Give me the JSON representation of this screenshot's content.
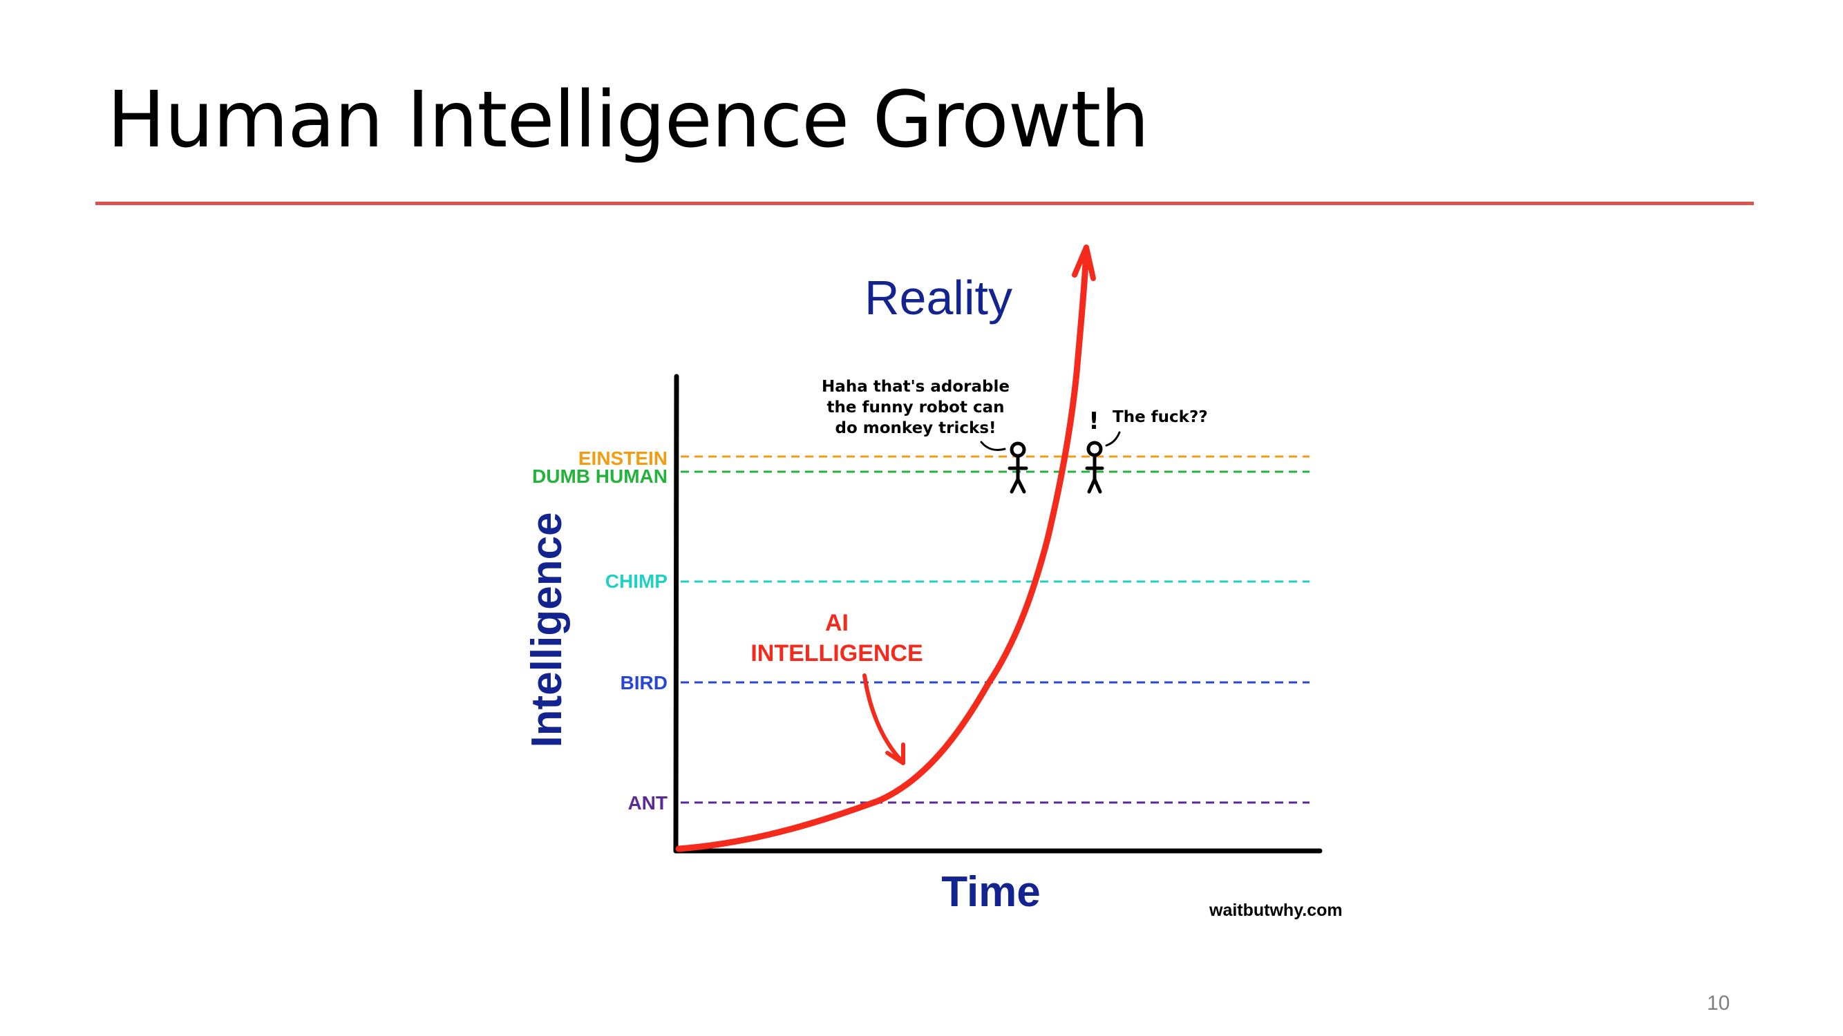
{
  "slide": {
    "title": "Human Intelligence Growth",
    "page_number": "10",
    "rule_color": "#d9534f"
  },
  "diagram": {
    "title": "Reality",
    "x_axis_label": "Time",
    "y_axis_label": "Intelligence",
    "source": "waitbutwhy.com",
    "levels": [
      {
        "label": "EINSTEIN",
        "color": "#f39c12"
      },
      {
        "label": "DUMB HUMAN",
        "color": "#22b33a"
      },
      {
        "label": "CHIMP",
        "color": "#1fd1c2"
      },
      {
        "label": "BIRD",
        "color": "#2846d6"
      },
      {
        "label": "ANT",
        "color": "#5a2a96"
      }
    ],
    "curve": {
      "label_line1": "AI",
      "label_line2": "INTELLIGENCE",
      "color": "#f42b1c"
    },
    "speech": {
      "left_lines": [
        "Haha that's adorable",
        "the funny robot can",
        "do monkey tricks!"
      ],
      "right_line": "The fuck??",
      "exclamation": "!"
    },
    "colors": {
      "axis": "#000000",
      "title": "#13238f"
    }
  }
}
